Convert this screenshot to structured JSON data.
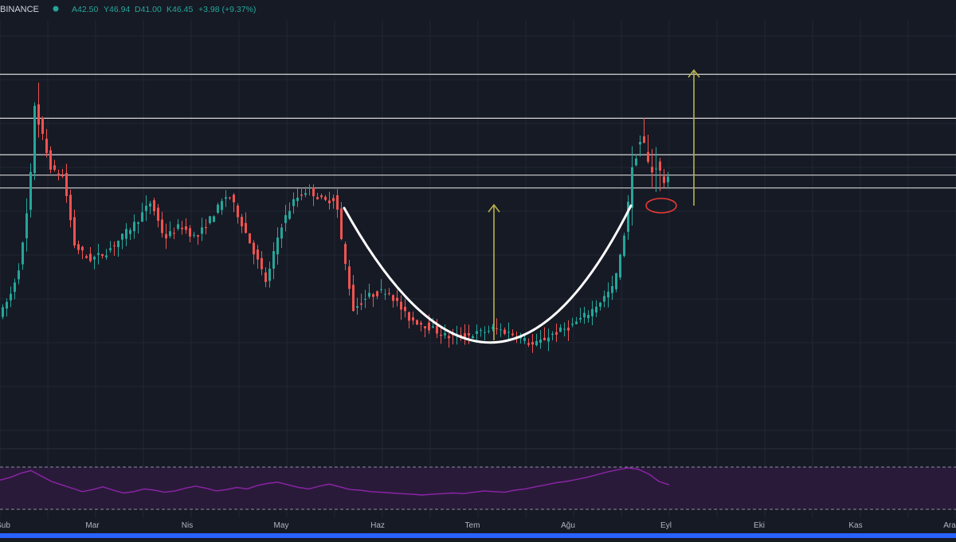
{
  "header": {
    "exchange": "BINANCE",
    "open": "A42.50",
    "high": "Y46.94",
    "low": "D41.00",
    "close": "K46.45",
    "change": "+3.98 (+9.37%)"
  },
  "colors": {
    "background": "#161a25",
    "grid": "#232734",
    "up": "#26a69a",
    "down": "#ef5350",
    "level_line": "#d6d6d6",
    "target_arrow": "#b8b24a",
    "cup_curve": "#ffffff",
    "rsi_line": "#8e24aa",
    "rsi_band": "#2a1a3a",
    "axis_text": "#b2b5be",
    "highlight_ellipse": "#e53935",
    "bottom_bar": "#2962ff"
  },
  "chart_data": {
    "type": "candlestick",
    "price_range": [
      31.2,
      50.9
    ],
    "x_ticks": [
      "Şub",
      "Mar",
      "Nis",
      "May",
      "Haz",
      "Tem",
      "Ağu",
      "Eyl",
      "Eki",
      "Kas",
      "Ara"
    ],
    "horizontal_levels": [
      48.55,
      46.5,
      44.8,
      43.85,
      43.25
    ],
    "annotations": [
      "cup-shape",
      "measured-move-arrow-in-cup",
      "measured-move-arrow-target",
      "retest-ellipse"
    ],
    "rsi": {
      "band_upper": 70,
      "band_lower": 30,
      "values": [
        62,
        66,
        72,
        76,
        68,
        60,
        55,
        50,
        45,
        48,
        52,
        47,
        43,
        45,
        49,
        47,
        44,
        46,
        50,
        53,
        50,
        46,
        48,
        51,
        49,
        54,
        57,
        59,
        55,
        51,
        49,
        53,
        56,
        52,
        48,
        47,
        45,
        44,
        43,
        42,
        41,
        40,
        41,
        42,
        43,
        42,
        44,
        46,
        45,
        44,
        47,
        49,
        52,
        55,
        58,
        60,
        63,
        66,
        70,
        74,
        77,
        80,
        78,
        71,
        60,
        55
      ]
    }
  }
}
